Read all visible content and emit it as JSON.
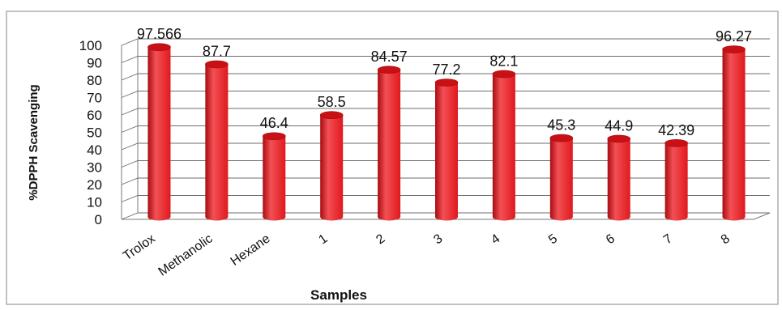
{
  "chart_data": {
    "type": "bar",
    "style": "3d-cylinder",
    "categories": [
      "Trolox",
      "Methanolic",
      "Hexane",
      "1",
      "2",
      "3",
      "4",
      "5",
      "6",
      "7",
      "8"
    ],
    "values": [
      97.566,
      87.7,
      46.4,
      58.5,
      84.57,
      77.2,
      82.1,
      45.3,
      44.9,
      42.39,
      96.27
    ],
    "data_labels": [
      "97.566",
      "87.7",
      "46.4",
      "58.5",
      "84.57",
      "77.2",
      "82.1",
      "45.3",
      "44.9",
      "42.39",
      "96.27"
    ],
    "yticks": [
      "0",
      "10",
      "20",
      "30",
      "40",
      "50",
      "60",
      "70",
      "80",
      "90",
      "100"
    ],
    "ylim": [
      0,
      100
    ],
    "xlabel": "Samples",
    "ylabel": "%DPPH Scavenging",
    "grid": true,
    "legend": "none",
    "colors": {
      "bar": "#e0191e",
      "bar_dark": "#a80c10",
      "bar_light": "#f25055",
      "bar_top": "#c81015"
    }
  }
}
